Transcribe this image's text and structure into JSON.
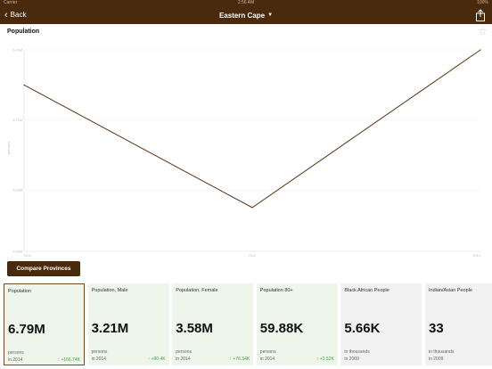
{
  "status_bar": {
    "carrier": "Carrier",
    "time": "2:56 AM",
    "battery": "100%"
  },
  "nav": {
    "back_label": "Back",
    "title": "Eastern Cape",
    "share_icon": "share-icon"
  },
  "page": {
    "title": "Population"
  },
  "colors": {
    "brand": "#4a2a0c",
    "line": "#5a3412",
    "card_green": "#eef5ea",
    "card_gray": "#f1f1f1",
    "delta_green": "#4aa04a"
  },
  "chart_data": {
    "type": "line",
    "title": "Population",
    "ylabel": "persons",
    "x": [
      "2010",
      "2012",
      "2014"
    ],
    "x_numeric": [
      2010,
      2012,
      2014
    ],
    "series": [
      {
        "values": [
          6.75,
          6.61,
          6.79
        ]
      }
    ],
    "y_ticks": [
      "6.56M",
      "6.63M",
      "6.71M",
      "6.79M"
    ],
    "y_tick_values": [
      6.56,
      6.63,
      6.71,
      6.79
    ],
    "ylim": [
      6.56,
      6.79
    ],
    "xlim": [
      2010,
      2014
    ],
    "grid": true,
    "legend": "none"
  },
  "compare_button": {
    "label": "Compare Provinces"
  },
  "cards": [
    {
      "title": "Population",
      "value": "6.79M",
      "unit": "persons",
      "year": "in 2014",
      "delta": "↑ +166.74K",
      "selected": true,
      "tone": "green"
    },
    {
      "title": "Population, Male",
      "value": "3.21M",
      "unit": "persons",
      "year": "in 2014",
      "delta": "↑ +90.4K",
      "selected": false,
      "tone": "green"
    },
    {
      "title": "Population, Female",
      "value": "3.58M",
      "unit": "persons",
      "year": "in 2014",
      "delta": "↑ +76.34K",
      "selected": false,
      "tone": "green"
    },
    {
      "title": "Population 80+",
      "value": "59.88K",
      "unit": "persons",
      "year": "in 2014",
      "delta": "↑ +3.52K",
      "selected": false,
      "tone": "green"
    },
    {
      "title": "Black African People",
      "value": "5.66K",
      "unit": "in thousands",
      "year": "in 2009",
      "delta": "",
      "selected": false,
      "tone": "gray"
    },
    {
      "title": "Indian/Asian People",
      "value": "33",
      "unit": "in thousands",
      "year": "in 2009",
      "delta": "",
      "selected": false,
      "tone": "gray"
    }
  ]
}
